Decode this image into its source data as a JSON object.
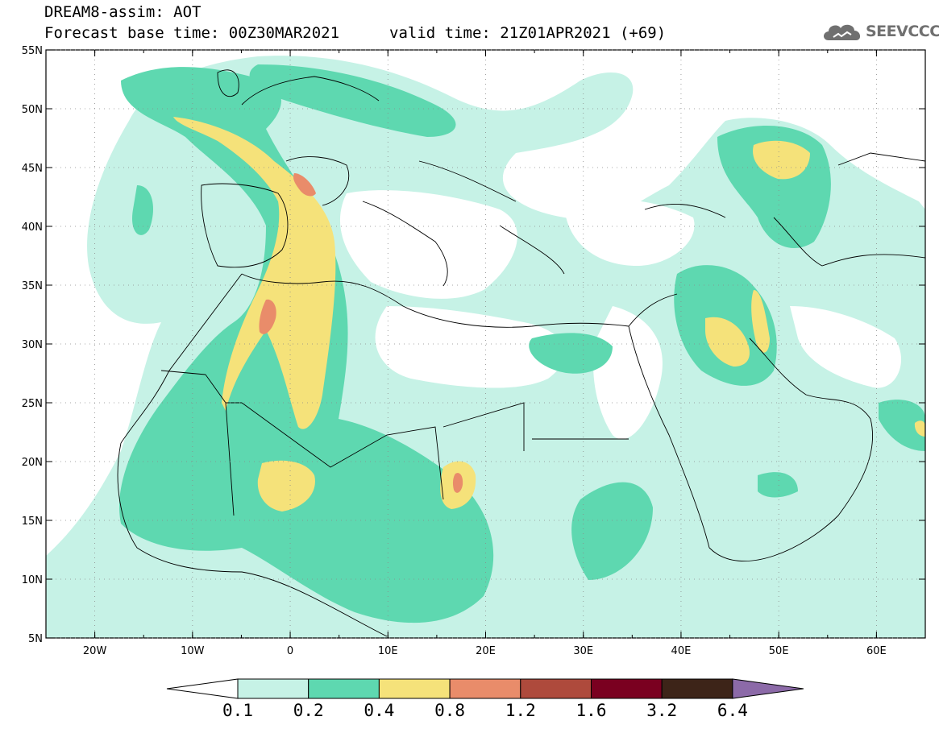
{
  "header": {
    "title": "DREAM8-assim: AOT",
    "forecast_base": "Forecast base time: 00Z30MAR2021",
    "valid_time": "valid time: 21Z01APR2021 (+69)"
  },
  "logo": {
    "text": "SEEVCCC",
    "icon": "cloud-icon"
  },
  "map": {
    "lon_range": [
      -25,
      65
    ],
    "lat_range": [
      5,
      55
    ],
    "lon_ticks": [
      {
        "value": -20,
        "label": "20W"
      },
      {
        "value": -10,
        "label": "10W"
      },
      {
        "value": 0,
        "label": "0"
      },
      {
        "value": 10,
        "label": "10E"
      },
      {
        "value": 20,
        "label": "20E"
      },
      {
        "value": 30,
        "label": "30E"
      },
      {
        "value": 40,
        "label": "40E"
      },
      {
        "value": 50,
        "label": "50E"
      },
      {
        "value": 60,
        "label": "60E"
      }
    ],
    "lat_ticks": [
      {
        "value": 55,
        "label": "55N"
      },
      {
        "value": 50,
        "label": "50N"
      },
      {
        "value": 45,
        "label": "45N"
      },
      {
        "value": 40,
        "label": "40N"
      },
      {
        "value": 35,
        "label": "35N"
      },
      {
        "value": 30,
        "label": "30N"
      },
      {
        "value": 25,
        "label": "25N"
      },
      {
        "value": 20,
        "label": "20N"
      },
      {
        "value": 15,
        "label": "15N"
      },
      {
        "value": 10,
        "label": "10N"
      },
      {
        "value": 5,
        "label": "5N"
      }
    ],
    "grid": "dotted"
  },
  "colorbar": {
    "levels": [
      "0.1",
      "0.2",
      "0.4",
      "0.8",
      "1.2",
      "1.6",
      "3.2",
      "6.4"
    ],
    "colors": [
      "#ffffff",
      "#c6f2e6",
      "#5ed8b0",
      "#f5e27a",
      "#e98c6a",
      "#ae4a3c",
      "#7a0020",
      "#3d2418",
      "#8c6aa8"
    ]
  }
}
